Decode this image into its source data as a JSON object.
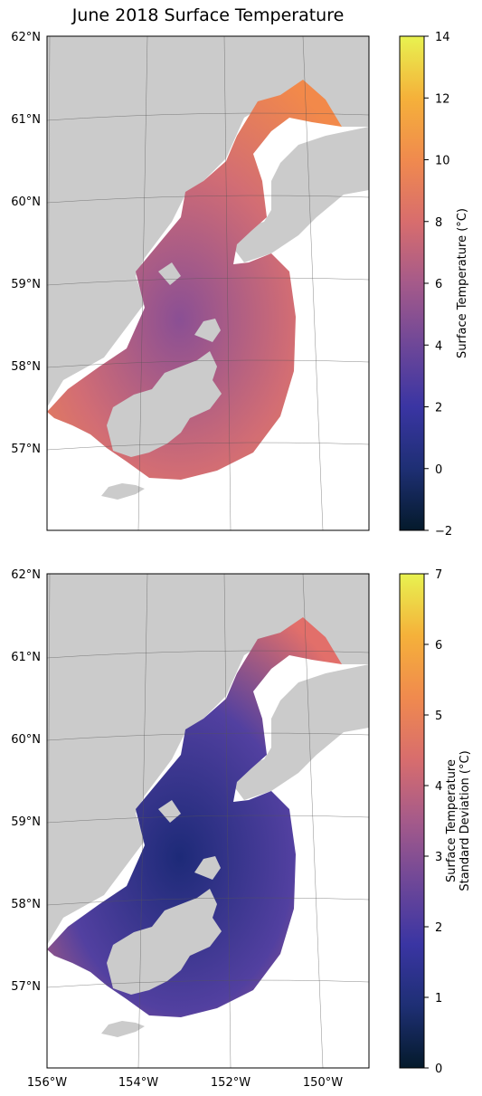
{
  "title": "June 2018 Surface Temperature",
  "colors": {
    "land": "#cbcbcb",
    "frame": "#000000",
    "grid": "#555555",
    "colormap": [
      "#041a2b",
      "#1e2f74",
      "#3a35a3",
      "#6e4798",
      "#a55a8a",
      "#d86d6d",
      "#f08a4e",
      "#f5b13a",
      "#e8f250"
    ]
  },
  "maps": [
    {
      "name": "temperature",
      "lat_labels": [
        "62°N",
        "61°N",
        "60°N",
        "59°N",
        "58°N",
        "57°N"
      ],
      "lon_labels": [],
      "colorbar": {
        "label": "Surface Temperature (°C)",
        "label_lines": [
          "Surface Temperature (°C)"
        ],
        "min": -2,
        "max": 14,
        "ticks": [
          "14",
          "12",
          "10",
          "8",
          "6",
          "4",
          "2",
          "0",
          "−2"
        ]
      },
      "field_color": "#d26d74",
      "accent_color": "#f2894a",
      "low_color": "#8a4f94"
    },
    {
      "name": "std_dev",
      "lat_labels": [
        "62°N",
        "61°N",
        "60°N",
        "59°N",
        "58°N",
        "57°N"
      ],
      "lon_labels": [
        "156°W",
        "154°W",
        "152°W",
        "150°W"
      ],
      "colorbar": {
        "label": "Surface Temperature Standard Deviation (°C)",
        "label_lines": [
          "Surface Temperature",
          "Standard Deviation (°C)"
        ],
        "min": 0,
        "max": 7,
        "ticks": [
          "7",
          "6",
          "5",
          "4",
          "3",
          "2",
          "1",
          "0"
        ]
      },
      "field_color": "#5240a0",
      "accent_color": "#e26f6a",
      "low_color": "#1d2a78"
    }
  ]
}
